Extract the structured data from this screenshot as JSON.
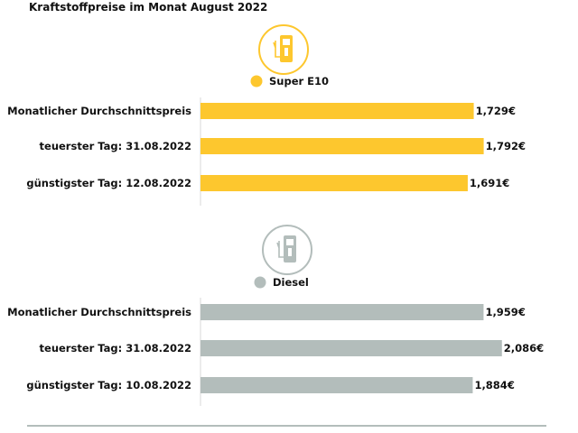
{
  "chart_data": {
    "title": "Kraftstoffpreise im Monat August 2022",
    "type": "bar",
    "orientation": "horizontal",
    "unit": "€",
    "panels": [
      {
        "name": "Super E10",
        "color": "#FDC72E",
        "icon": "fuel-pump-icon",
        "categories": [
          "Monatlicher Durchschnittspreis",
          "teuerster Tag: 31.08.2022",
          "günstigster Tag: 12.08.2022"
        ],
        "values": [
          1.729,
          1.792,
          1.691
        ],
        "value_labels": [
          "1,729€",
          "1,792€",
          "1,691€"
        ]
      },
      {
        "name": "Diesel",
        "color": "#B3BDBB",
        "icon": "fuel-pump-icon",
        "categories": [
          "Monatlicher Durchschnittspreis",
          "teuerster Tag: 31.08.2022",
          "günstigster Tag: 10.08.2022"
        ],
        "values": [
          1.959,
          2.086,
          1.884
        ],
        "value_labels": [
          "1,959€",
          "2,086€",
          "1,884€"
        ]
      }
    ]
  }
}
